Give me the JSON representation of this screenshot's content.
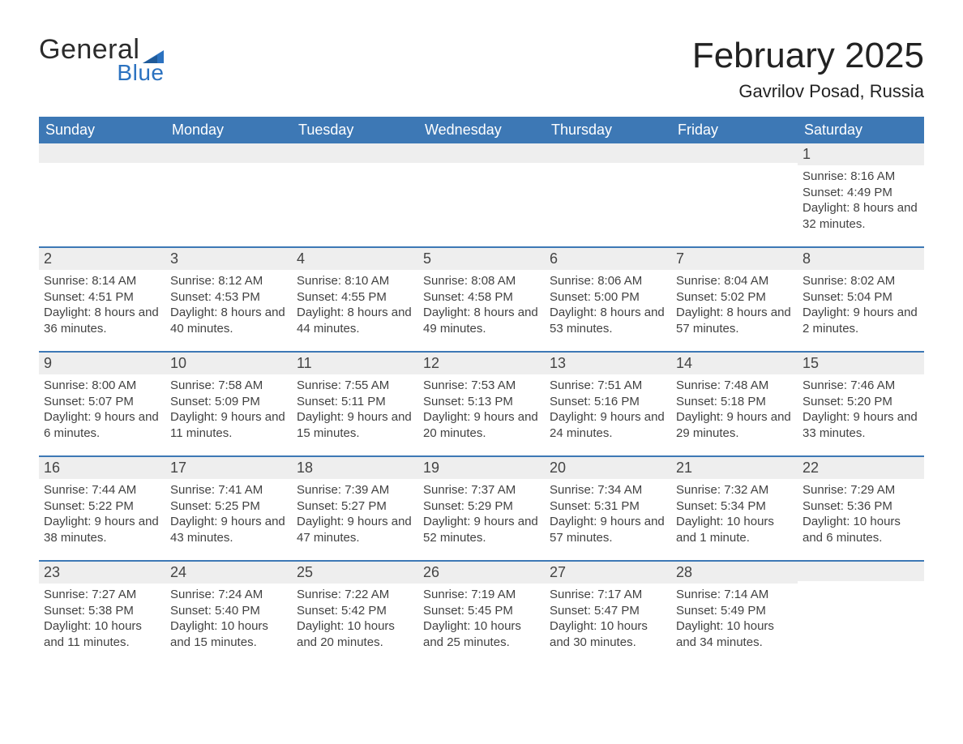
{
  "brand": {
    "word1": "General",
    "word2": "Blue",
    "flag_color": "#2b72c0"
  },
  "title": {
    "month_year": "February 2025",
    "location": "Gavrilov Posad, Russia"
  },
  "colors": {
    "header_bg": "#3d78b5",
    "accent": "#2b72c0",
    "band_bg": "#eeeeee",
    "rule": "#3d78b5",
    "page_bg": "#ffffff"
  },
  "weekdays": [
    "Sunday",
    "Monday",
    "Tuesday",
    "Wednesday",
    "Thursday",
    "Friday",
    "Saturday"
  ],
  "labels": {
    "sunrise": "Sunrise:",
    "sunset": "Sunset:",
    "daylight": "Daylight:"
  },
  "weeks": [
    [
      null,
      null,
      null,
      null,
      null,
      null,
      {
        "n": 1,
        "sunrise": "8:16 AM",
        "sunset": "4:49 PM",
        "daylight": "8 hours and 32 minutes."
      }
    ],
    [
      {
        "n": 2,
        "sunrise": "8:14 AM",
        "sunset": "4:51 PM",
        "daylight": "8 hours and 36 minutes."
      },
      {
        "n": 3,
        "sunrise": "8:12 AM",
        "sunset": "4:53 PM",
        "daylight": "8 hours and 40 minutes."
      },
      {
        "n": 4,
        "sunrise": "8:10 AM",
        "sunset": "4:55 PM",
        "daylight": "8 hours and 44 minutes."
      },
      {
        "n": 5,
        "sunrise": "8:08 AM",
        "sunset": "4:58 PM",
        "daylight": "8 hours and 49 minutes."
      },
      {
        "n": 6,
        "sunrise": "8:06 AM",
        "sunset": "5:00 PM",
        "daylight": "8 hours and 53 minutes."
      },
      {
        "n": 7,
        "sunrise": "8:04 AM",
        "sunset": "5:02 PM",
        "daylight": "8 hours and 57 minutes."
      },
      {
        "n": 8,
        "sunrise": "8:02 AM",
        "sunset": "5:04 PM",
        "daylight": "9 hours and 2 minutes."
      }
    ],
    [
      {
        "n": 9,
        "sunrise": "8:00 AM",
        "sunset": "5:07 PM",
        "daylight": "9 hours and 6 minutes."
      },
      {
        "n": 10,
        "sunrise": "7:58 AM",
        "sunset": "5:09 PM",
        "daylight": "9 hours and 11 minutes."
      },
      {
        "n": 11,
        "sunrise": "7:55 AM",
        "sunset": "5:11 PM",
        "daylight": "9 hours and 15 minutes."
      },
      {
        "n": 12,
        "sunrise": "7:53 AM",
        "sunset": "5:13 PM",
        "daylight": "9 hours and 20 minutes."
      },
      {
        "n": 13,
        "sunrise": "7:51 AM",
        "sunset": "5:16 PM",
        "daylight": "9 hours and 24 minutes."
      },
      {
        "n": 14,
        "sunrise": "7:48 AM",
        "sunset": "5:18 PM",
        "daylight": "9 hours and 29 minutes."
      },
      {
        "n": 15,
        "sunrise": "7:46 AM",
        "sunset": "5:20 PM",
        "daylight": "9 hours and 33 minutes."
      }
    ],
    [
      {
        "n": 16,
        "sunrise": "7:44 AM",
        "sunset": "5:22 PM",
        "daylight": "9 hours and 38 minutes."
      },
      {
        "n": 17,
        "sunrise": "7:41 AM",
        "sunset": "5:25 PM",
        "daylight": "9 hours and 43 minutes."
      },
      {
        "n": 18,
        "sunrise": "7:39 AM",
        "sunset": "5:27 PM",
        "daylight": "9 hours and 47 minutes."
      },
      {
        "n": 19,
        "sunrise": "7:37 AM",
        "sunset": "5:29 PM",
        "daylight": "9 hours and 52 minutes."
      },
      {
        "n": 20,
        "sunrise": "7:34 AM",
        "sunset": "5:31 PM",
        "daylight": "9 hours and 57 minutes."
      },
      {
        "n": 21,
        "sunrise": "7:32 AM",
        "sunset": "5:34 PM",
        "daylight": "10 hours and 1 minute."
      },
      {
        "n": 22,
        "sunrise": "7:29 AM",
        "sunset": "5:36 PM",
        "daylight": "10 hours and 6 minutes."
      }
    ],
    [
      {
        "n": 23,
        "sunrise": "7:27 AM",
        "sunset": "5:38 PM",
        "daylight": "10 hours and 11 minutes."
      },
      {
        "n": 24,
        "sunrise": "7:24 AM",
        "sunset": "5:40 PM",
        "daylight": "10 hours and 15 minutes."
      },
      {
        "n": 25,
        "sunrise": "7:22 AM",
        "sunset": "5:42 PM",
        "daylight": "10 hours and 20 minutes."
      },
      {
        "n": 26,
        "sunrise": "7:19 AM",
        "sunset": "5:45 PM",
        "daylight": "10 hours and 25 minutes."
      },
      {
        "n": 27,
        "sunrise": "7:17 AM",
        "sunset": "5:47 PM",
        "daylight": "10 hours and 30 minutes."
      },
      {
        "n": 28,
        "sunrise": "7:14 AM",
        "sunset": "5:49 PM",
        "daylight": "10 hours and 34 minutes."
      },
      null
    ]
  ]
}
